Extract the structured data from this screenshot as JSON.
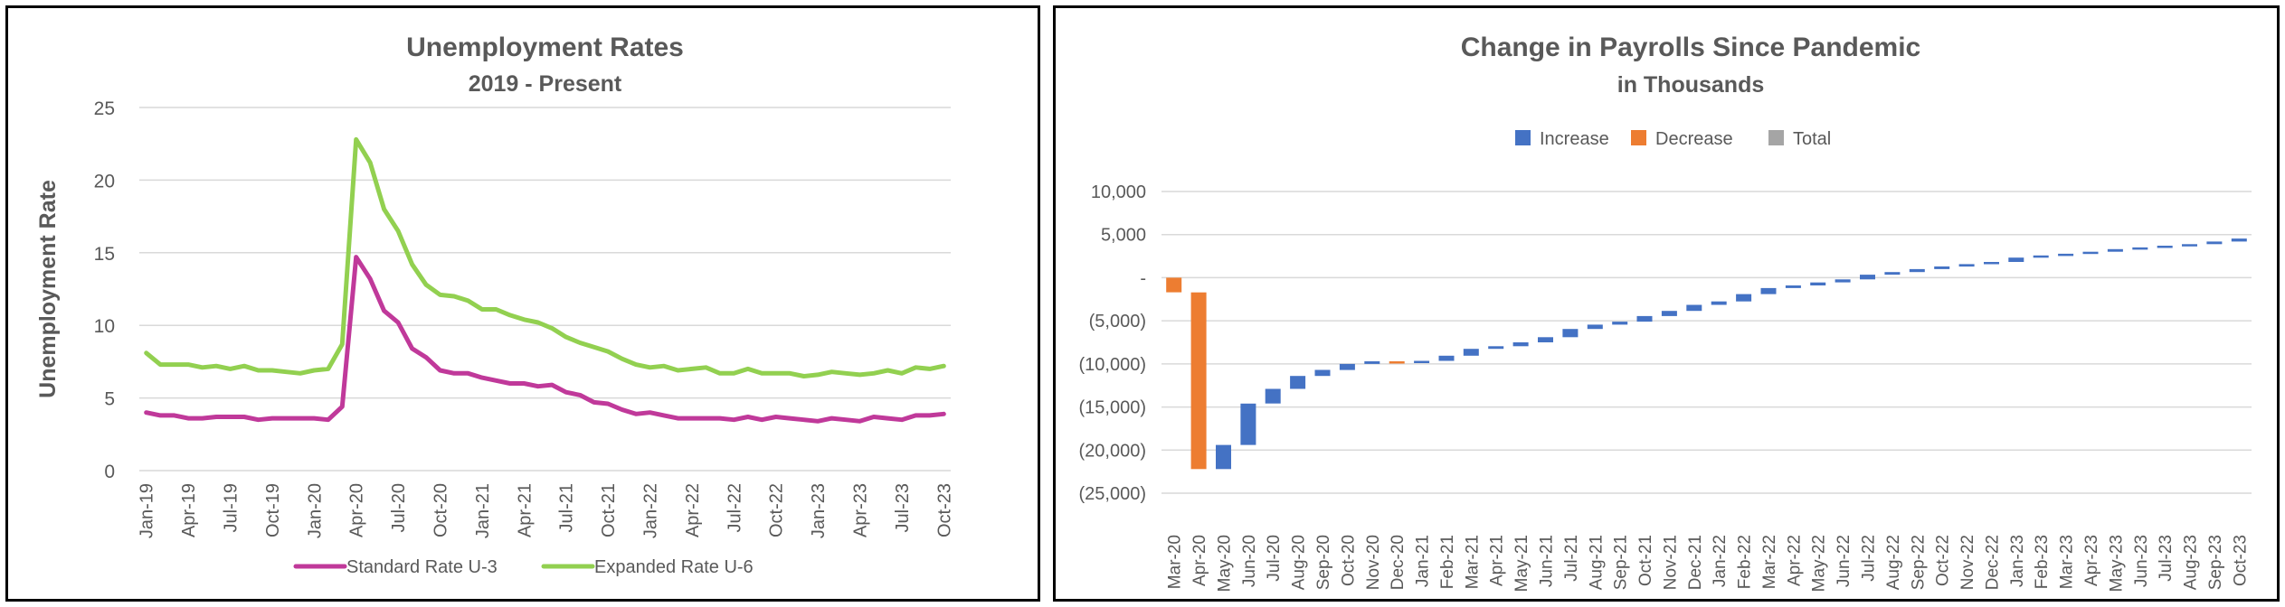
{
  "chart_data": [
    {
      "type": "line",
      "title": "Unemployment Rates",
      "subtitle": "2019 - Present",
      "xlabel": "",
      "ylabel": "Unemployment Rate",
      "ylim": [
        0,
        25
      ],
      "yticks": [
        "0",
        "5",
        "10",
        "15",
        "20",
        "25"
      ],
      "x": [
        "Jan-19",
        "Feb-19",
        "Mar-19",
        "Apr-19",
        "May-19",
        "Jun-19",
        "Jul-19",
        "Aug-19",
        "Sep-19",
        "Oct-19",
        "Nov-19",
        "Dec-19",
        "Jan-20",
        "Feb-20",
        "Mar-20",
        "Apr-20",
        "May-20",
        "Jun-20",
        "Jul-20",
        "Aug-20",
        "Sep-20",
        "Oct-20",
        "Nov-20",
        "Dec-20",
        "Jan-21",
        "Feb-21",
        "Mar-21",
        "Apr-21",
        "May-21",
        "Jun-21",
        "Jul-21",
        "Aug-21",
        "Sep-21",
        "Oct-21",
        "Nov-21",
        "Dec-21",
        "Jan-22",
        "Feb-22",
        "Mar-22",
        "Apr-22",
        "May-22",
        "Jun-22",
        "Jul-22",
        "Aug-22",
        "Sep-22",
        "Oct-22",
        "Nov-22",
        "Dec-22",
        "Jan-23",
        "Feb-23",
        "Mar-23",
        "Apr-23",
        "May-23",
        "Jun-23",
        "Jul-23",
        "Aug-23",
        "Sep-23",
        "Oct-23"
      ],
      "x_tick_labels": [
        "Jan-19",
        "Apr-19",
        "Jul-19",
        "Oct-19",
        "Jan-20",
        "Apr-20",
        "Jul-20",
        "Oct-20",
        "Jan-21",
        "Apr-21",
        "Jul-21",
        "Oct-21",
        "Jan-22",
        "Apr-22",
        "Jul-22",
        "Oct-22",
        "Jan-23",
        "Apr-23",
        "Jul-23",
        "Oct-23"
      ],
      "series": [
        {
          "name": "Standard Rate U-3",
          "color": "#C0399A",
          "values": [
            4.0,
            3.8,
            3.8,
            3.6,
            3.6,
            3.7,
            3.7,
            3.7,
            3.5,
            3.6,
            3.6,
            3.6,
            3.6,
            3.5,
            4.4,
            14.7,
            13.2,
            11.0,
            10.2,
            8.4,
            7.8,
            6.9,
            6.7,
            6.7,
            6.4,
            6.2,
            6.0,
            6.0,
            5.8,
            5.9,
            5.4,
            5.2,
            4.7,
            4.6,
            4.2,
            3.9,
            4.0,
            3.8,
            3.6,
            3.6,
            3.6,
            3.6,
            3.5,
            3.7,
            3.5,
            3.7,
            3.6,
            3.5,
            3.4,
            3.6,
            3.5,
            3.4,
            3.7,
            3.6,
            3.5,
            3.8,
            3.8,
            3.9
          ]
        },
        {
          "name": "Expanded Rate U-6",
          "color": "#92D050",
          "values": [
            8.1,
            7.3,
            7.3,
            7.3,
            7.1,
            7.2,
            7.0,
            7.2,
            6.9,
            6.9,
            6.8,
            6.7,
            6.9,
            7.0,
            8.7,
            22.8,
            21.2,
            18.0,
            16.5,
            14.2,
            12.8,
            12.1,
            12.0,
            11.7,
            11.1,
            11.1,
            10.7,
            10.4,
            10.2,
            9.8,
            9.2,
            8.8,
            8.5,
            8.2,
            7.7,
            7.3,
            7.1,
            7.2,
            6.9,
            7.0,
            7.1,
            6.7,
            6.7,
            7.0,
            6.7,
            6.7,
            6.7,
            6.5,
            6.6,
            6.8,
            6.7,
            6.6,
            6.7,
            6.9,
            6.7,
            7.1,
            7.0,
            7.2
          ]
        }
      ],
      "legend": "bottom",
      "grid": true
    },
    {
      "type": "waterfall",
      "title": "Change in Payrolls Since Pandemic",
      "subtitle": "in Thousands",
      "legend_position": "top",
      "legend": [
        {
          "label": "Increase",
          "color": "#4472C4"
        },
        {
          "label": "Decrease",
          "color": "#ED7D31"
        },
        {
          "label": "Total",
          "color": "#A5A5A5"
        }
      ],
      "ylim": [
        -25000,
        10000
      ],
      "yticks": [
        "10,000",
        "5,000",
        "-",
        "(5,000)",
        "(10,000)",
        "(15,000)",
        "(20,000)",
        "(25,000)"
      ],
      "categories": [
        "Mar-20",
        "Apr-20",
        "May-20",
        "Jun-20",
        "Jul-20",
        "Aug-20",
        "Sep-20",
        "Oct-20",
        "Nov-20",
        "Dec-20",
        "Jan-21",
        "Feb-21",
        "Mar-21",
        "Apr-21",
        "May-21",
        "Jun-21",
        "Jul-21",
        "Aug-21",
        "Sep-21",
        "Oct-21",
        "Nov-21",
        "Dec-21",
        "Jan-22",
        "Feb-22",
        "Mar-22",
        "Apr-22",
        "May-22",
        "Jun-22",
        "Jul-22",
        "Aug-22",
        "Sep-22",
        "Oct-22",
        "Nov-22",
        "Dec-22",
        "Jan-23",
        "Feb-23",
        "Mar-23",
        "Apr-23",
        "May-23",
        "Jun-23",
        "Jul-23",
        "Aug-23",
        "Sep-23",
        "Oct-23"
      ],
      "changes": [
        -1700,
        -20500,
        2800,
        4800,
        1700,
        1500,
        700,
        700,
        300,
        -200,
        250,
        600,
        800,
        300,
        450,
        600,
        950,
        500,
        350,
        650,
        600,
        700,
        400,
        850,
        700,
        300,
        350,
        350,
        550,
        300,
        350,
        300,
        280,
        250,
        500,
        250,
        200,
        230,
        300,
        200,
        200,
        180,
        300,
        350
      ],
      "grid": true
    }
  ]
}
